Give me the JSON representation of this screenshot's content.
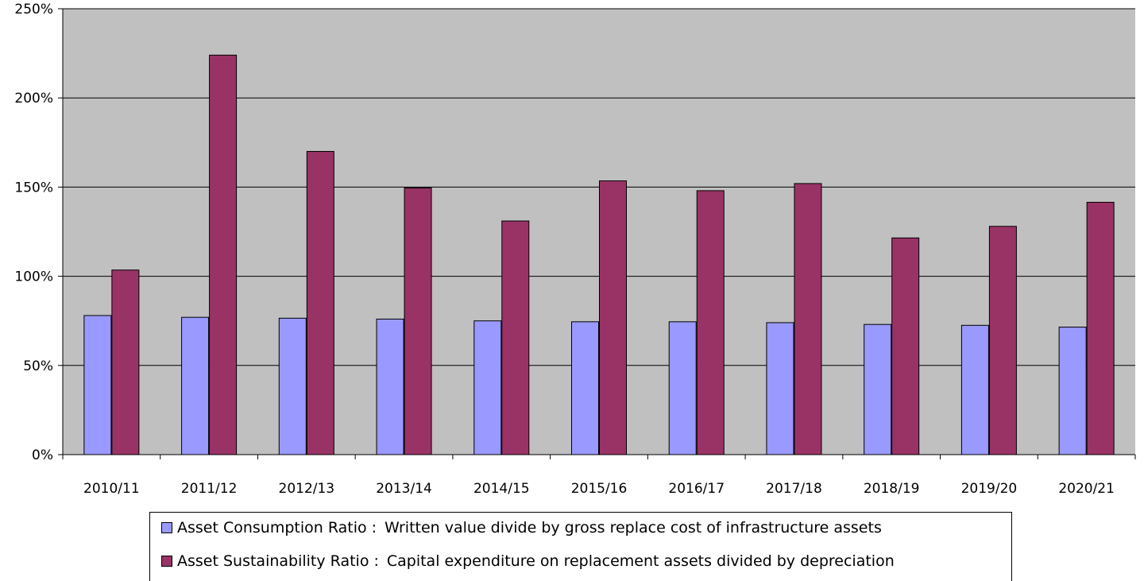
{
  "chart_data": {
    "type": "bar",
    "categories": [
      "2010/11",
      "2011/12",
      "2012/13",
      "2013/14",
      "2014/15",
      "2015/16",
      "2016/17",
      "2017/18",
      "2018/19",
      "2019/20",
      "2020/21"
    ],
    "series": [
      {
        "name": "Asset Consumption Ratio",
        "description": "Written value divide by gross replace cost of infrastructure assets",
        "color": "#9999ff",
        "values": [
          78,
          77,
          76.5,
          76,
          75,
          74.5,
          74.5,
          74,
          73,
          72.5,
          71.5
        ]
      },
      {
        "name": "Asset Sustainability Ratio",
        "description": "Capital expenditure on replacement assets divided by depreciation",
        "color": "#993366",
        "values": [
          103.5,
          224,
          170,
          149.5,
          131,
          153.5,
          148,
          152,
          121.5,
          128,
          141.5
        ]
      }
    ],
    "yticks": [
      "0%",
      "50%",
      "100%",
      "150%",
      "200%",
      "250%"
    ],
    "ylim": [
      0,
      250
    ],
    "grid": true,
    "plot_background": "#c0c0c0",
    "legend_position": "bottom",
    "legend_separator": ":"
  }
}
